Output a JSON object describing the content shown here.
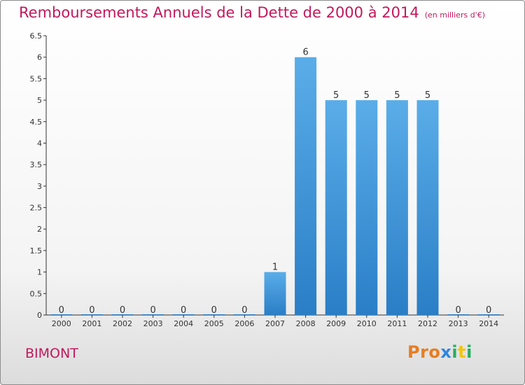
{
  "title": "Remboursements Annuels de la Dette de 2000 à 2014",
  "unit": "(en milliers d'€)",
  "commune": "BIMONT",
  "logo": "Proxiti",
  "colors": {
    "title": "#c2185b",
    "bar_light": "#5aade8",
    "bar_dark": "#2a7ec6",
    "axis": "#333333"
  },
  "chart_data": {
    "type": "bar",
    "title": "Remboursements Annuels de la Dette de 2000 à 2014",
    "xlabel": "",
    "ylabel": "",
    "categories": [
      "2000",
      "2001",
      "2002",
      "2003",
      "2004",
      "2005",
      "2006",
      "2007",
      "2008",
      "2009",
      "2010",
      "2011",
      "2012",
      "2013",
      "2014"
    ],
    "values": [
      0,
      0,
      0,
      0,
      0,
      0,
      0,
      1,
      6,
      5,
      5,
      5,
      5,
      0,
      0
    ],
    "value_labels": [
      "0",
      "0",
      "0",
      "0",
      "0",
      "0",
      "0",
      "1",
      "6",
      "5",
      "5",
      "5",
      "5",
      "0",
      "0"
    ],
    "ylim": [
      0,
      6.5
    ],
    "yticks": [
      0,
      0.5,
      1,
      1.5,
      2,
      2.5,
      3,
      3.5,
      4,
      4.5,
      5,
      5.5,
      6,
      6.5
    ],
    "ytick_labels": [
      "0",
      "0.5",
      "1",
      "1.5",
      "2",
      "2.5",
      "3",
      "3.5",
      "4",
      "4.5",
      "5",
      "5.5",
      "6",
      "6.5"
    ],
    "grid": false,
    "legend": "none"
  }
}
